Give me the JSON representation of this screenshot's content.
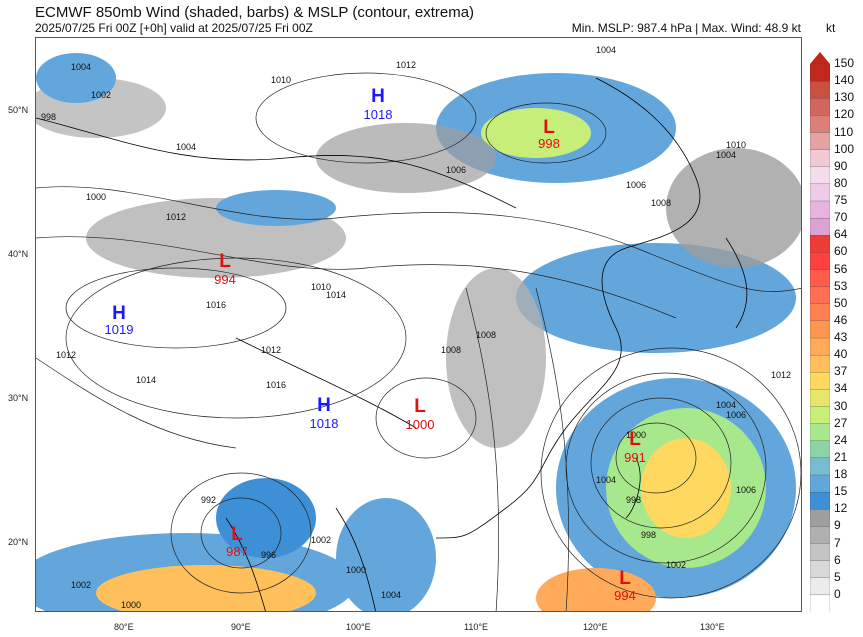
{
  "header": {
    "title": "ECMWF 850mb Wind (shaded, barbs) & MSLP (contour, extrema)",
    "subtitle": "2025/07/25 Fri 00Z [+0h] valid at 2025/07/25 Fri 00Z",
    "stats": "Min. MSLP: 987.4 hPa | Max. Wind: 48.9 kt"
  },
  "colorbar": {
    "unit": "kt",
    "ticks": [
      "150",
      "140",
      "130",
      "120",
      "110",
      "100",
      "90",
      "80",
      "75",
      "70",
      "64",
      "60",
      "56",
      "53",
      "50",
      "46",
      "43",
      "40",
      "37",
      "34",
      "30",
      "27",
      "24",
      "21",
      "18",
      "15",
      "12",
      "9",
      "7",
      "6",
      "5",
      "0"
    ],
    "colors": [
      "#c1281b",
      "#c9503e",
      "#d0665c",
      "#d97f78",
      "#e2a3a2",
      "#efc9d3",
      "#f5dcec",
      "#efcbe7",
      "#e6b4df",
      "#dda1d6",
      "#ee3b34",
      "#ff4040",
      "#ff5a4a",
      "#ff6e52",
      "#ff8050",
      "#ff9650",
      "#ffaa5a",
      "#ffc05c",
      "#ffd860",
      "#e8e66a",
      "#c8ee7a",
      "#a8e88c",
      "#8cd4a8",
      "#78bcd0",
      "#62a6dc",
      "#3d8fd6",
      "#9e9e9e",
      "#b0b0b0",
      "#c4c4c4",
      "#d8d8d8",
      "#ececec",
      "#ffffff"
    ]
  },
  "axes": {
    "lat_labels": [
      "50°N",
      "40°N",
      "30°N",
      "20°N"
    ],
    "lon_labels": [
      "80°E",
      "90°E",
      "100°E",
      "110°E",
      "120°E",
      "130°E"
    ]
  },
  "centers": [
    {
      "type": "H",
      "value": "1018",
      "color": "#1a1aff"
    },
    {
      "type": "L",
      "value": "998",
      "color": "#e01010"
    },
    {
      "type": "L",
      "value": "994",
      "color": "#e01010"
    },
    {
      "type": "H",
      "value": "1019",
      "color": "#1a1aff"
    },
    {
      "type": "H",
      "value": "1018",
      "color": "#1a1aff"
    },
    {
      "type": "L",
      "value": "1000",
      "color": "#e01010"
    },
    {
      "type": "L",
      "value": "991",
      "color": "#e01010"
    },
    {
      "type": "L",
      "value": "987",
      "color": "#e01010"
    },
    {
      "type": "L",
      "value": "994",
      "color": "#e01010"
    }
  ],
  "isobar_labels": [
    "1004",
    "1002",
    "998",
    "1000",
    "1004",
    "1006",
    "1012",
    "1014",
    "1010",
    "1012",
    "1008",
    "1004",
    "1006",
    "1008",
    "1010",
    "1012",
    "1016",
    "1012",
    "1014",
    "1010",
    "1012",
    "1016",
    "1008",
    "1006",
    "1004",
    "1000",
    "996",
    "992",
    "998",
    "1002",
    "1000",
    "1002",
    "1000",
    "1004",
    "1006",
    "1004",
    "1002",
    "998",
    "1004"
  ]
}
